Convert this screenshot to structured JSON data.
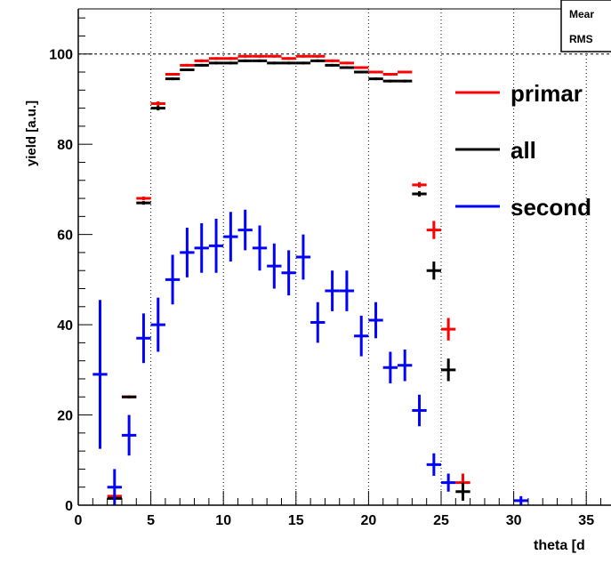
{
  "chart_data": {
    "type": "scatter",
    "xlabel": "theta [d",
    "ylabel": "yield [a.u.]",
    "xlim": [
      0,
      37.5
    ],
    "ylim": [
      0,
      110
    ],
    "x_ticks": [
      {
        "value": 0,
        "label": "0"
      },
      {
        "value": 5,
        "label": "5"
      },
      {
        "value": 10,
        "label": "10"
      },
      {
        "value": 15,
        "label": "15"
      },
      {
        "value": 20,
        "label": "20"
      },
      {
        "value": 25,
        "label": "25"
      },
      {
        "value": 30,
        "label": "30"
      },
      {
        "value": 35,
        "label": "35"
      }
    ],
    "y_ticks": [
      {
        "value": 0,
        "label": "0"
      },
      {
        "value": 20,
        "label": "20"
      },
      {
        "value": 40,
        "label": "40"
      },
      {
        "value": 60,
        "label": "60"
      },
      {
        "value": 80,
        "label": "80"
      },
      {
        "value": 100,
        "label": "100"
      }
    ],
    "grid": true,
    "reference_line": 100,
    "bin_width": 1,
    "stats_box": {
      "lines": [
        "Mear",
        "RMS"
      ]
    },
    "legend": {
      "position": "right"
    },
    "series": [
      {
        "name": "primar",
        "color": "#ff0000",
        "x": [
          2.5,
          3.5,
          4.5,
          5.5,
          6.5,
          7.5,
          8.5,
          9.5,
          10.5,
          11.5,
          12.5,
          13.5,
          14.5,
          15.5,
          16.5,
          17.5,
          18.5,
          19.5,
          20.5,
          21.5,
          22.5,
          23.5,
          24.5,
          25.5,
          26.5
        ],
        "y": [
          2,
          24,
          68,
          89,
          95.5,
          97.5,
          98.5,
          99,
          99,
          99.5,
          99.5,
          99.5,
          99,
          99.5,
          99.5,
          98.5,
          98,
          97,
          96,
          95.5,
          96,
          71,
          61,
          39,
          5
        ],
        "err": [
          0.3,
          0.3,
          0.4,
          0.5,
          0.3,
          0.3,
          0.3,
          0.3,
          0.3,
          0.3,
          0.3,
          0.3,
          0.3,
          0.3,
          0.3,
          0.3,
          0.3,
          0.3,
          0.3,
          0.3,
          0.3,
          0.6,
          2,
          2.5,
          2
        ]
      },
      {
        "name": "all",
        "color": "#000000",
        "x": [
          2.5,
          3.5,
          4.5,
          5.5,
          6.5,
          7.5,
          8.5,
          9.5,
          10.5,
          11.5,
          12.5,
          13.5,
          14.5,
          15.5,
          16.5,
          17.5,
          18.5,
          19.5,
          20.5,
          21.5,
          22.5,
          23.5,
          24.5,
          25.5,
          26.5
        ],
        "y": [
          1.5,
          24,
          67,
          88,
          94.5,
          96.5,
          97.5,
          98,
          98,
          98.5,
          98.5,
          98,
          98,
          98,
          98.5,
          97.5,
          97,
          96,
          94.5,
          94,
          94,
          69,
          52,
          30,
          3
        ],
        "err": [
          0.3,
          0.3,
          0.4,
          0.5,
          0.3,
          0.3,
          0.3,
          0.3,
          0.3,
          0.3,
          0.3,
          0.3,
          0.3,
          0.3,
          0.3,
          0.3,
          0.3,
          0.3,
          0.3,
          0.3,
          0.3,
          0.6,
          2,
          2.5,
          2
        ]
      },
      {
        "name": "second",
        "color": "#0000ff",
        "x": [
          1.5,
          2.5,
          3.5,
          4.5,
          5.5,
          6.5,
          7.5,
          8.5,
          9.5,
          10.5,
          11.5,
          12.5,
          13.5,
          14.5,
          15.5,
          16.5,
          17.5,
          18.5,
          19.5,
          20.5,
          21.5,
          22.5,
          23.5,
          24.5,
          25.5,
          30.5
        ],
        "y": [
          29,
          4,
          15.5,
          37,
          40,
          50,
          56,
          57,
          57.5,
          59.5,
          61,
          57,
          53,
          51.5,
          55,
          40.5,
          47.5,
          47.5,
          37.5,
          41,
          30.5,
          31,
          21,
          9,
          5,
          1
        ],
        "err": [
          16.5,
          4,
          4.5,
          5.5,
          6,
          5.5,
          5.5,
          5.5,
          6,
          5.5,
          4.5,
          5,
          5,
          5,
          5,
          4.5,
          4.5,
          4.5,
          4.5,
          4,
          3.5,
          3.5,
          3.5,
          2.5,
          2,
          1
        ]
      }
    ]
  }
}
